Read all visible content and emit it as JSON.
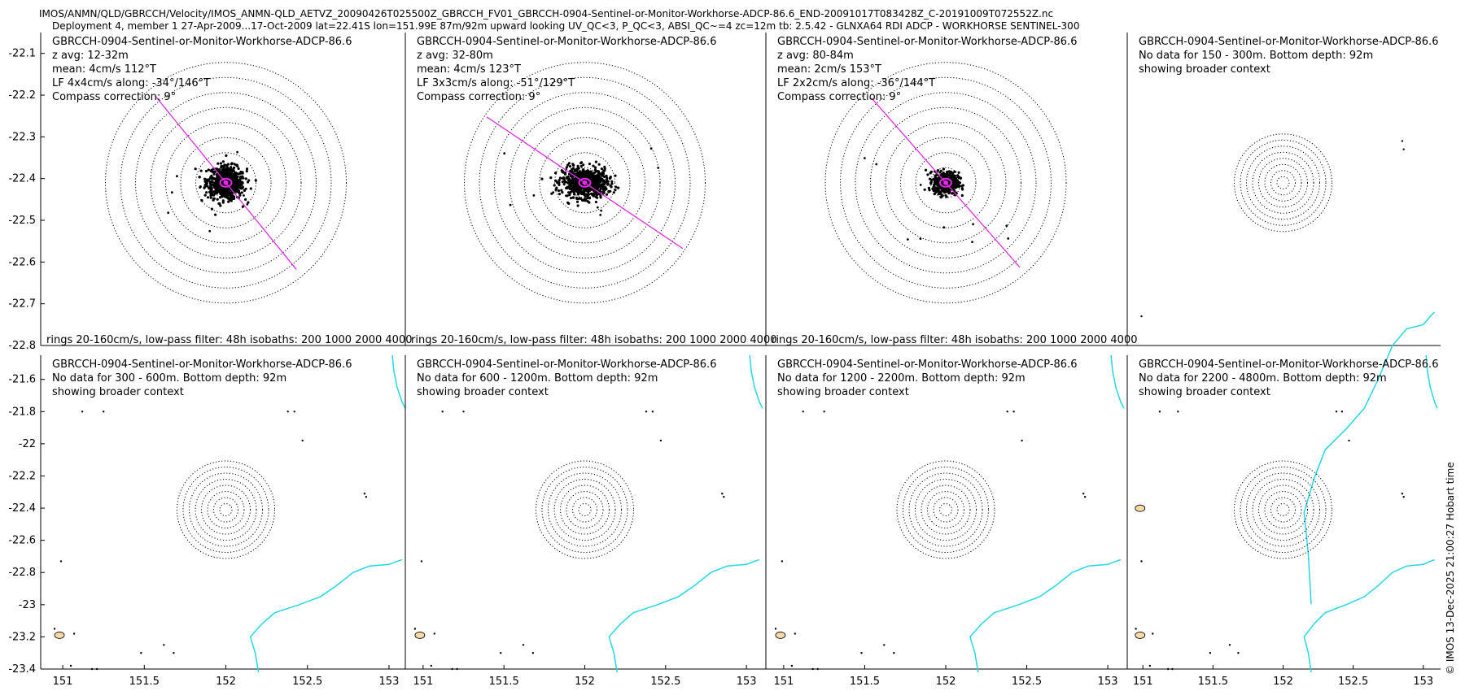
{
  "header": {
    "file_path": "IMOS/ANMN/QLD/GBRCCH/Velocity/IMOS_ANMN-QLD_AETVZ_20090426T025500Z_GBRCCH_FV01_GBRCCH-0904-Sentinel-or-Monitor-Workhorse-ADCP-86.6_END-20091017T083428Z_C-20191009T072552Z.nc",
    "deployment_line": "Deployment 4, member 1 27-Apr-2009...17-Oct-2009 lat=22.41S lon=151.99E 87m/92m upward looking UV_QC<3, P_QC<3, ABSI_QC~=4 zc=12m tb: 2.5.42 - GLNXA64 RDI ADCP - WORKHORSE SENTINEL-300"
  },
  "side_label": "© IMOS 13-Dec-2025 21:00:27 Hobart time",
  "colors": {
    "scatter": "#000000",
    "axis": "#1a3cff",
    "coast": "#22d8e6",
    "rings": "#000000"
  },
  "chart_data": [
    {
      "type": "scatter",
      "instrument": "GBRCCH-0904-Sentinel-or-Monitor-Workhorse-ADCP-86.6",
      "info_lines": [
        "z avg: 12-32m",
        "mean: 4cm/s 112°T",
        "LF 4x4cm/s along: -34°/146°T",
        "Compass correction: 9°"
      ],
      "footer": "rings 20-160cm/s, low-pass filter: 48h isobaths: 200 1000  2000 4000",
      "rings_cms": [
        20,
        40,
        60,
        80,
        100,
        120,
        140,
        160
      ],
      "along_axis_deg": 146,
      "cloud": {
        "center_lon": 152.0,
        "center_lat": -22.41,
        "spread_lon": 0.11,
        "spread_lat": 0.035,
        "orientation_deg": 112,
        "n": 700
      },
      "ylim": [
        -22.8,
        -22.05
      ],
      "yticks": [
        "-22.1",
        "-22.2",
        "-22.3",
        "-22.4",
        "-22.5",
        "-22.6",
        "-22.7",
        "-22.8"
      ]
    },
    {
      "type": "scatter",
      "instrument": "GBRCCH-0904-Sentinel-or-Monitor-Workhorse-ADCP-86.6",
      "info_lines": [
        "z avg: 32-80m",
        "mean: 4cm/s 123°T",
        "LF 3x3cm/s along: -51°/129°T",
        "Compass correction: 9°"
      ],
      "footer": "rings 20-160cm/s, low-pass filter: 48h isobaths: 200 1000  2000 4000",
      "rings_cms": [
        20,
        40,
        60,
        80,
        100,
        120,
        140,
        160
      ],
      "along_axis_deg": 129,
      "cloud": {
        "center_lon": 152.0,
        "center_lat": -22.41,
        "spread_lon": 0.13,
        "spread_lat": 0.03,
        "orientation_deg": 100,
        "n": 700
      }
    },
    {
      "type": "scatter",
      "instrument": "GBRCCH-0904-Sentinel-or-Monitor-Workhorse-ADCP-86.6",
      "info_lines": [
        "z avg: 80-84m",
        "mean: 2cm/s 153°T",
        "LF 2x2cm/s along: -36°/144°T",
        "Compass correction: 9°"
      ],
      "footer": "rings 20-160cm/s, low-pass filter: 48h isobaths: 200 1000  2000 4000",
      "rings_cms": [
        20,
        40,
        60,
        80,
        100,
        120,
        140,
        160
      ],
      "along_axis_deg": 144,
      "cloud": {
        "center_lon": 152.0,
        "center_lat": -22.41,
        "spread_lon": 0.07,
        "spread_lat": 0.022,
        "orientation_deg": 100,
        "n": 500
      }
    },
    {
      "type": "map",
      "instrument": "GBRCCH-0904-Sentinel-or-Monitor-Workhorse-ADCP-86.6",
      "info_lines": [
        "No data for 150 - 300m. Bottom depth: 92m",
        "showing broader context"
      ]
    },
    {
      "type": "map",
      "instrument": "GBRCCH-0904-Sentinel-or-Monitor-Workhorse-ADCP-86.6",
      "info_lines": [
        "No data for 300 - 600m. Bottom depth: 92m",
        "showing broader context"
      ],
      "ylim": [
        -23.4,
        -21.45
      ],
      "yticks": [
        "-21.6",
        "-21.8",
        "-22",
        "-22.2",
        "-22.4",
        "-22.6",
        "-22.8",
        "-23",
        "-23.2",
        "-23.4"
      ],
      "xlim": [
        150.9,
        153.1
      ],
      "xticks": [
        "151",
        "151.5",
        "152",
        "152.5",
        "153"
      ]
    },
    {
      "type": "map",
      "instrument": "GBRCCH-0904-Sentinel-or-Monitor-Workhorse-ADCP-86.6",
      "info_lines": [
        "No data for 600 - 1200m. Bottom depth: 92m",
        "showing broader context"
      ],
      "xticks": [
        "151",
        "151.5",
        "152",
        "152.5",
        "153"
      ]
    },
    {
      "type": "map",
      "instrument": "GBRCCH-0904-Sentinel-or-Monitor-Workhorse-ADCP-86.6",
      "info_lines": [
        "No data for 1200 - 2200m. Bottom depth: 92m",
        "showing broader context"
      ],
      "xticks": [
        "151",
        "151.5",
        "152",
        "152.5",
        "153"
      ]
    },
    {
      "type": "map",
      "instrument": "GBRCCH-0904-Sentinel-or-Monitor-Workhorse-ADCP-86.6",
      "info_lines": [
        "No data for 2200 - 4800m. Bottom depth: 92m",
        "showing broader context"
      ],
      "xticks": [
        "151",
        "151.5",
        "152",
        "152.5",
        "153"
      ]
    }
  ]
}
